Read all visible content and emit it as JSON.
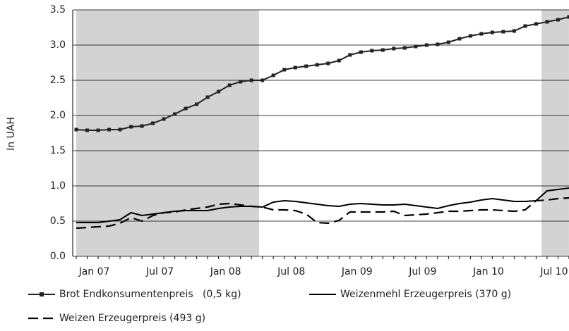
{
  "chart_data": {
    "type": "line",
    "y_label": "In UAH",
    "categories": [
      null,
      "Jan 07",
      null,
      null,
      null,
      null,
      null,
      "Jul 07",
      null,
      null,
      null,
      null,
      null,
      "Jan 08",
      null,
      null,
      null,
      null,
      null,
      "Jul 08",
      null,
      null,
      null,
      null,
      null,
      "Jan 09",
      null,
      null,
      null,
      null,
      null,
      "Jul 09",
      null,
      null,
      null,
      null,
      null,
      "Jan 10",
      null,
      null,
      null,
      null,
      null,
      "Jul 10",
      null,
      null
    ],
    "series": [
      {
        "name": "Brot Endkonsumentenpreis   (0,5 kg)",
        "color": "#222222",
        "style": "marker",
        "values": [
          1.8,
          1.79,
          1.79,
          1.8,
          1.8,
          1.84,
          1.85,
          1.89,
          1.95,
          2.02,
          2.1,
          2.16,
          2.26,
          2.34,
          2.43,
          2.48,
          2.5,
          2.5,
          2.57,
          2.65,
          2.68,
          2.7,
          2.72,
          2.74,
          2.78,
          2.86,
          2.9,
          2.92,
          2.93,
          2.95,
          2.96,
          2.98,
          3.0,
          3.01,
          3.04,
          3.09,
          3.13,
          3.16,
          3.18,
          3.19,
          3.2,
          3.27,
          3.3,
          3.33,
          3.36,
          3.4
        ]
      },
      {
        "name": "Weizenmehl Erzeugerpreis (370 g)",
        "color": "#000000",
        "style": "solid",
        "values": [
          0.48,
          0.48,
          0.48,
          0.5,
          0.52,
          0.62,
          0.58,
          0.6,
          0.62,
          0.64,
          0.65,
          0.65,
          0.65,
          0.68,
          0.7,
          0.71,
          0.71,
          0.7,
          0.77,
          0.79,
          0.78,
          0.76,
          0.74,
          0.72,
          0.71,
          0.74,
          0.75,
          0.74,
          0.73,
          0.73,
          0.74,
          0.72,
          0.7,
          0.68,
          0.72,
          0.75,
          0.77,
          0.8,
          0.82,
          0.8,
          0.78,
          0.78,
          0.79,
          0.93,
          0.95,
          0.97
        ]
      },
      {
        "name": "Weizen Erzeugerpreis (493 g)",
        "color": "#000000",
        "style": "dashed",
        "values": [
          0.4,
          0.41,
          0.42,
          0.43,
          0.47,
          0.55,
          0.5,
          0.58,
          0.62,
          0.63,
          0.66,
          0.68,
          0.7,
          0.74,
          0.75,
          0.73,
          0.71,
          0.7,
          0.66,
          0.66,
          0.65,
          0.6,
          0.48,
          0.47,
          0.51,
          0.63,
          0.63,
          0.63,
          0.63,
          0.64,
          0.58,
          0.59,
          0.6,
          0.62,
          0.64,
          0.64,
          0.65,
          0.66,
          0.66,
          0.65,
          0.64,
          0.66,
          0.79,
          0.8,
          0.82,
          0.83
        ]
      }
    ],
    "shaded": [
      {
        "from": 0,
        "to": 16.7
      },
      {
        "from": 42.5,
        "to": 45
      }
    ],
    "shade_color": "#d3d3d3",
    "ylim": [
      0,
      3.5
    ],
    "yticks": [
      {
        "value": 0,
        "label": "0.0"
      },
      0.5,
      {
        "value": 1,
        "label": "1.0"
      },
      1.5,
      {
        "value": 2,
        "label": "2.0"
      },
      2.5,
      {
        "value": 3,
        "label": "3.0"
      },
      3.5
    ],
    "grid": true
  }
}
